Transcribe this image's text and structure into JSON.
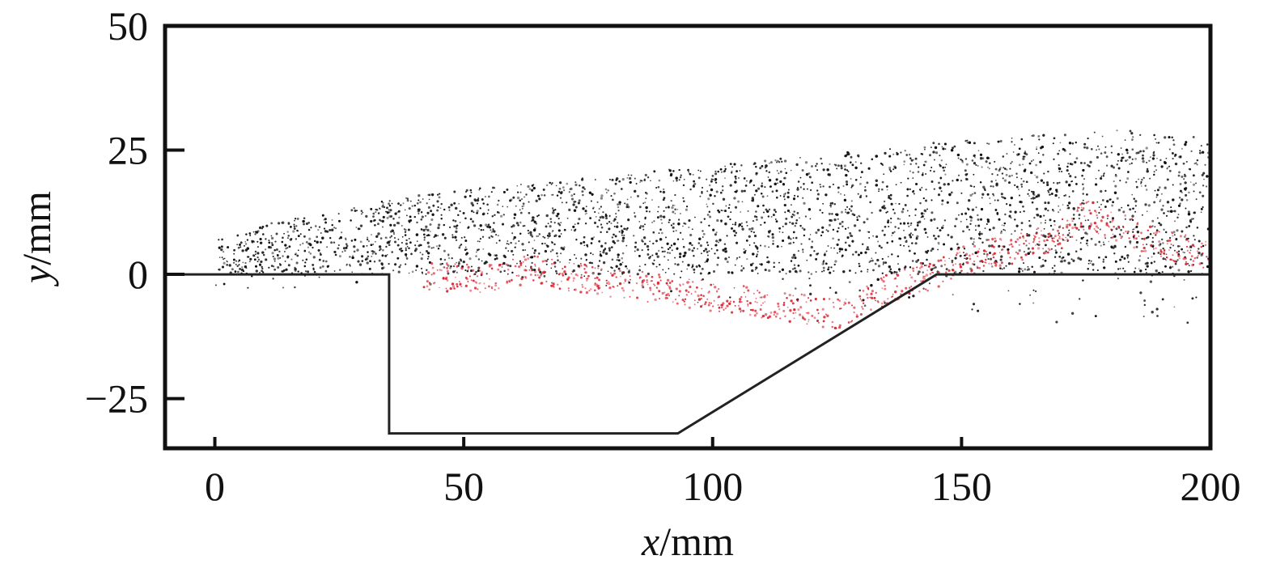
{
  "chart_data": {
    "type": "scatter",
    "title": "",
    "xlabel": {
      "var": "x",
      "unit": "/mm"
    },
    "ylabel": {
      "var": "y",
      "unit": "/mm"
    },
    "xlim": [
      -10,
      200
    ],
    "ylim": [
      -35,
      50
    ],
    "x_ticks": [
      0,
      50,
      100,
      150,
      200
    ],
    "y_ticks": [
      50,
      25,
      0,
      -25
    ],
    "y_tick_labels": [
      "50",
      "25",
      "0",
      "−25"
    ],
    "grid": false,
    "legend": "none",
    "colors": {
      "series_black": "#111111",
      "series_red": "#d81e2a",
      "geometry": "#222222",
      "axes": "#111111"
    },
    "geometry": {
      "name": "cavity-wall",
      "x": [
        -10,
        35,
        35,
        93,
        145,
        200
      ],
      "y": [
        0,
        0,
        -32,
        -32,
        0,
        0
      ]
    },
    "series": [
      {
        "color": "#111111",
        "x": [
          0,
          0,
          0,
          5,
          10,
          15,
          20,
          25,
          30,
          35,
          40,
          50,
          60,
          70,
          80,
          90,
          100,
          110,
          120,
          130,
          140,
          150,
          160,
          170,
          180,
          190,
          200,
          200
        ],
        "y": [
          0,
          4,
          7,
          8,
          10,
          11,
          12,
          13,
          14,
          15,
          16,
          17,
          18,
          19,
          20,
          21,
          22,
          23,
          24,
          25,
          26,
          27,
          28,
          28,
          29,
          29,
          28,
          0
        ]
      },
      {
        "color": "#d81e2a",
        "x": [
          42,
          50,
          58,
          62,
          125,
          130,
          135,
          140,
          145,
          150,
          160,
          170,
          175,
          180,
          190,
          200
        ],
        "y": [
          0,
          -1,
          0,
          1,
          -8,
          -6,
          -3,
          -1,
          0,
          3,
          5,
          8,
          12,
          10,
          6,
          4
        ]
      }
    ]
  }
}
